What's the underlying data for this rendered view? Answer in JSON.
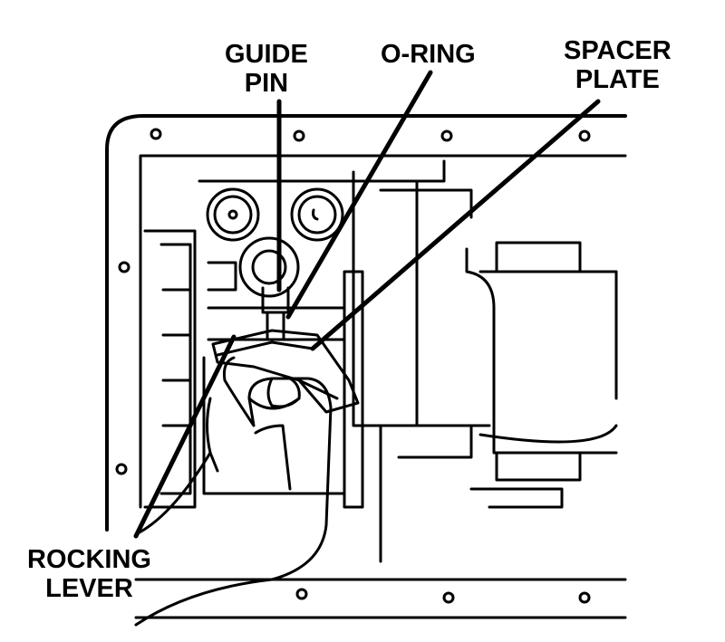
{
  "labels": {
    "guide_pin": [
      "GUIDE",
      "PIN"
    ],
    "o_ring": "O-RING",
    "spacer_plate": [
      "SPACER",
      "PLATE"
    ],
    "rocking_lever": [
      "ROCKING",
      "LEVER"
    ]
  },
  "colors": {
    "ink": "#000000",
    "paper": "#ffffff"
  }
}
